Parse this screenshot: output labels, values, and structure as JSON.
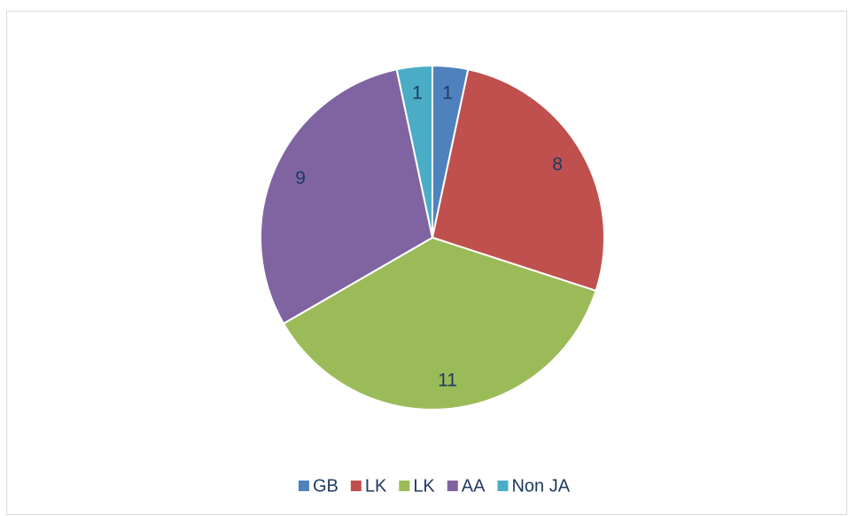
{
  "chart_data": {
    "type": "pie",
    "categories": [
      "GB",
      "LK",
      "LK",
      "AA",
      "Non JA"
    ],
    "values": [
      1,
      8,
      11,
      9,
      1
    ],
    "colors": [
      "#4f81bd",
      "#c0504d",
      "#9bbb59",
      "#8064a2",
      "#4bacc6"
    ],
    "legend": "bottom"
  }
}
